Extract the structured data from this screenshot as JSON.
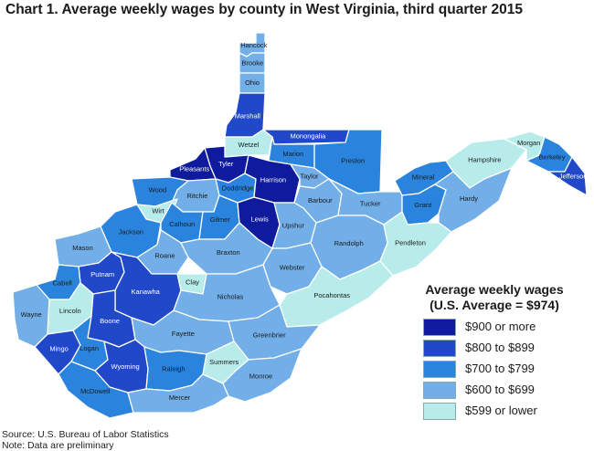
{
  "title": "Chart 1. Average weekly wages by county in West Virginia, third quarter 2015",
  "legend": {
    "title_line1": "Average weekly wages",
    "title_line2": "(U.S. Average = $974)",
    "items": [
      {
        "label": "$900 or more",
        "color": "#0d1b9c"
      },
      {
        "label": "$800 to $899",
        "color": "#2148c8"
      },
      {
        "label": "$700 to $799",
        "color": "#2a84dd"
      },
      {
        "label": "$600 to $699",
        "color": "#72aee8"
      },
      {
        "label": "$599 or lower",
        "color": "#b8ecea"
      }
    ]
  },
  "counties": [
    {
      "name": "Hancock",
      "class": 3
    },
    {
      "name": "Brooke",
      "class": 3
    },
    {
      "name": "Ohio",
      "class": 3
    },
    {
      "name": "Marshall",
      "class": 1
    },
    {
      "name": "Wetzel",
      "class": 4
    },
    {
      "name": "Monongalia",
      "class": 1
    },
    {
      "name": "Marion",
      "class": 2
    },
    {
      "name": "Preston",
      "class": 2
    },
    {
      "name": "Tyler",
      "class": 0
    },
    {
      "name": "Pleasants",
      "class": 0
    },
    {
      "name": "Wood",
      "class": 2
    },
    {
      "name": "Ritchie",
      "class": 3
    },
    {
      "name": "Doddridge",
      "class": 2
    },
    {
      "name": "Harrison",
      "class": 0
    },
    {
      "name": "Taylor",
      "class": 3
    },
    {
      "name": "Barbour",
      "class": 3
    },
    {
      "name": "Tucker",
      "class": 3
    },
    {
      "name": "Mineral",
      "class": 2
    },
    {
      "name": "Hampshire",
      "class": 4
    },
    {
      "name": "Morgan",
      "class": 4
    },
    {
      "name": "Berkeley",
      "class": 2
    },
    {
      "name": "Jefferson",
      "class": 1
    },
    {
      "name": "Grant",
      "class": 2
    },
    {
      "name": "Hardy",
      "class": 3
    },
    {
      "name": "Wirt",
      "class": 4
    },
    {
      "name": "Jackson",
      "class": 2
    },
    {
      "name": "Calhoun",
      "class": 2
    },
    {
      "name": "Gilmer",
      "class": 2
    },
    {
      "name": "Lewis",
      "class": 0
    },
    {
      "name": "Upshur",
      "class": 3
    },
    {
      "name": "Randolph",
      "class": 3
    },
    {
      "name": "Pendleton",
      "class": 4
    },
    {
      "name": "Mason",
      "class": 3
    },
    {
      "name": "Roane",
      "class": 3
    },
    {
      "name": "Braxton",
      "class": 3
    },
    {
      "name": "Webster",
      "class": 3
    },
    {
      "name": "Pocahontas",
      "class": 4
    },
    {
      "name": "Putnam",
      "class": 1
    },
    {
      "name": "Cabell",
      "class": 2
    },
    {
      "name": "Kanawha",
      "class": 1
    },
    {
      "name": "Clay",
      "class": 4
    },
    {
      "name": "Nicholas",
      "class": 3
    },
    {
      "name": "Wayne",
      "class": 3
    },
    {
      "name": "Lincoln",
      "class": 4
    },
    {
      "name": "Boone",
      "class": 1
    },
    {
      "name": "Fayette",
      "class": 3
    },
    {
      "name": "Greenbrier",
      "class": 3
    },
    {
      "name": "Mingo",
      "class": 1
    },
    {
      "name": "Logan",
      "class": 2
    },
    {
      "name": "Wyoming",
      "class": 1
    },
    {
      "name": "Raleigh",
      "class": 2
    },
    {
      "name": "Summers",
      "class": 4
    },
    {
      "name": "Monroe",
      "class": 3
    },
    {
      "name": "McDowell",
      "class": 2
    },
    {
      "name": "Mercer",
      "class": 3
    }
  ],
  "source": "Source: U.S. Bureau of Labor Statistics",
  "note": "Note: Data are preliminary"
}
